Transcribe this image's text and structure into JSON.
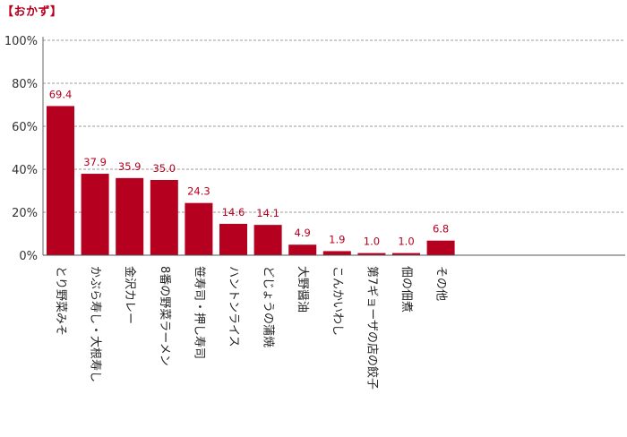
{
  "section_title": "【おかず】",
  "chart_data": {
    "type": "bar",
    "categories": [
      "とり野菜みそ",
      "かぶら寿し・大根寿し",
      "金沢カレー",
      "8番の野菜ラーメン",
      "笹寿司・押し寿司",
      "ハントンライス",
      "どじょうの蒲焼",
      "大野醤油",
      "こんかいわし",
      "第7ギョーザの店の餃子",
      "佃の佃煮",
      "その他"
    ],
    "values": [
      69.4,
      37.9,
      35.9,
      35.0,
      24.3,
      14.6,
      14.1,
      4.9,
      1.9,
      1.0,
      1.0,
      6.8
    ],
    "value_labels": [
      "69.4",
      "37.9",
      "35.9",
      "35.0",
      "24.3",
      "14.6",
      "14.1",
      "4.9",
      "1.9",
      "1.0",
      "1.0",
      "6.8"
    ],
    "ylim": [
      0,
      100
    ],
    "yticks": [
      "0%",
      "20%",
      "40%",
      "60%",
      "80%",
      "100%"
    ],
    "grid": true,
    "bar_color": "#b5001f"
  }
}
